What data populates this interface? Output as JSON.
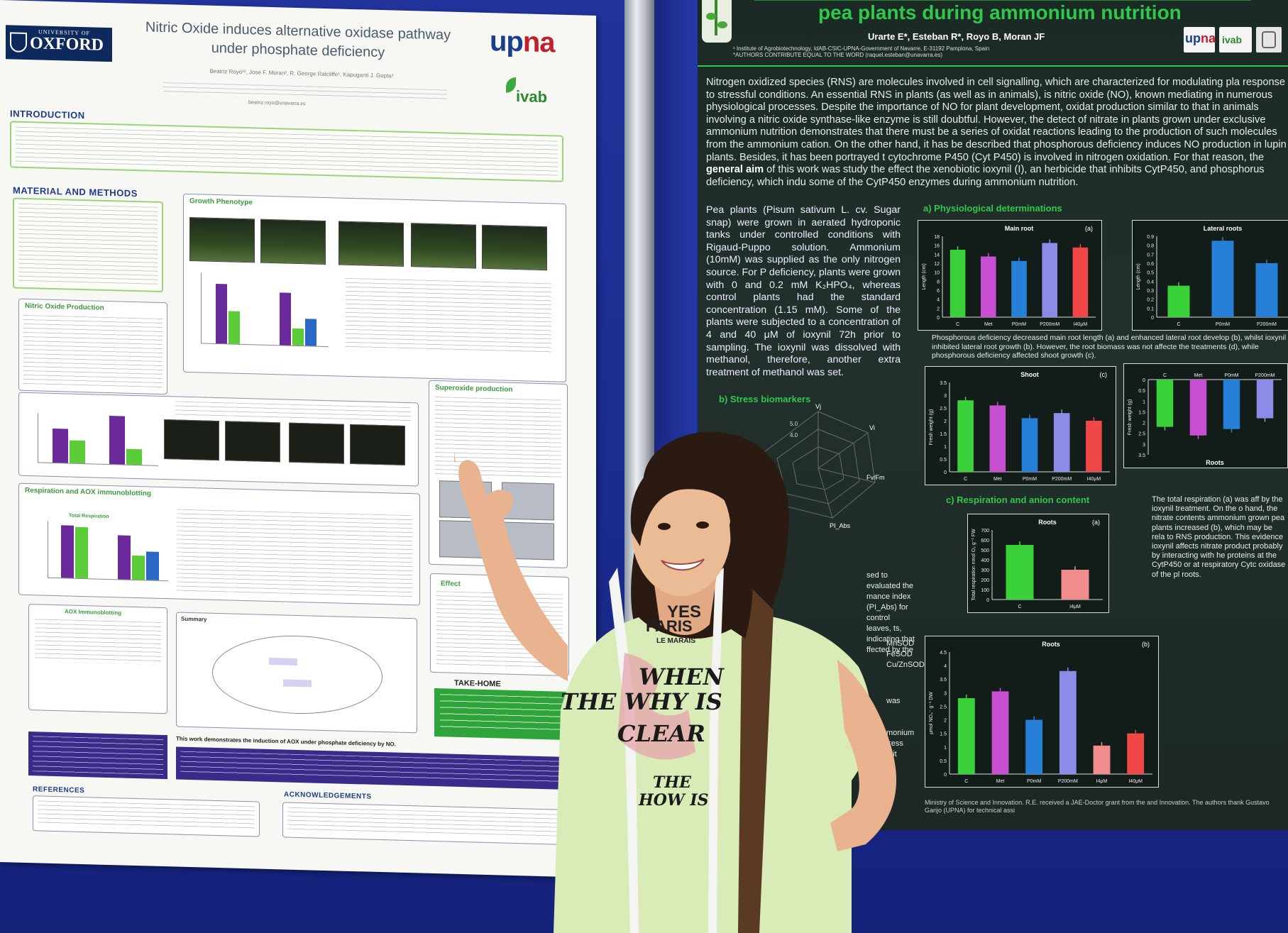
{
  "left_poster": {
    "institution_logo": "UNIVERSITY OF OXFORD",
    "institution_logo_small": "UNIVERSITY OF",
    "institution_logo_large": "OXFORD",
    "title_line1": "Nitric Oxide induces alternative oxidase pathway",
    "title_line2": "under phosphate deficiency",
    "authors": "Beatriz Royo¹², Jose F. Moran², R. George Ratcliffe¹, Kapuganti J. Gupta¹",
    "email": "beatriz.royo@unavarra.es",
    "logo_upna_blue": "up",
    "logo_upna_red": "na",
    "logo_ivab": "ivab",
    "sections": {
      "introduction": "INTRODUCTION",
      "material_methods": "MATERIAL AND METHODS",
      "growth_phenotype": "Growth Phenotype",
      "nitric_oxide": "Nitric Oxide Production",
      "superoxide": "Superoxide production",
      "respiration": "Respiration and AOX immunoblotting",
      "total_respiration": "Total Respiration",
      "aox_immunoblotting": "AOX Immunoblotting",
      "summary": "Summary",
      "take_home": "TAKE-HOME",
      "effect": "Effect",
      "references": "REFERENCES",
      "acknowledgements": "ACKNOWLEDGEMENTS"
    },
    "conclusion_line": "This work demonstrates the induction of AOX under phosphate deficiency by NO."
  },
  "right_poster": {
    "title": "pea plants during ammonium nutrition",
    "authors": "Urarte E*, Esteban R*, Royo B, Moran JF",
    "affiliation_line1": "¹ Institute of Agrobiotechnology, IdAB-CSIC-UPNA-Government of Navarre, E-31192 Pamplona, Spain",
    "affiliation_line2": "*AUTHORS CONTRIBUTE EQUAL TO THE WORD (raquel.esteban@unavarra.es)",
    "logo_upna_blue": "up",
    "logo_upna_red": "na",
    "logo_ivab": "ivab",
    "intro_part1": "Nitrogen oxidized species (RNS) are molecules involved in cell signalling, which are characterized for modulating pla response to stressful conditions. An essential RNS in plants (as well as in animals), is nitric oxide (NO), known mediating in numerous physiological processes. Despite the importance of NO for plant development, oxidat production similar to that in animals involving a nitric oxide synthase-like enzyme is still doubtful. However, the detect of nitrate in plants grown under exclusive ammonium nutrition demonstrates that there must be a series of oxidat reactions leading to the production of such molecules from the ammonium cation. On the other hand, it has be described that phosphorous deficiency induces NO production in lupin plants. Besides, it has been portrayed t cytochrome P450 (Cyt P450) is involved in nitrogen oxidation. For that reason, the ",
    "intro_bold": "general aim",
    "intro_part2": " of this work was study the effect the xenobiotic ioxynil (I), an herbicide that inhibits CytP450, and phosphorus deficiency, which indu some of the CytP450 enzymes during ammonium nutrition.",
    "methods": "Pea plants (Pisum sativum L. cv. Sugar snap) were grown in aerated hydroponic tanks under controlled conditions with Rigaud-Puppo solution. Ammonium (10mM) was supplied as the only nitrogen source. For P deficiency, plants were grown with 0 and 0.2 mM K₂HPO₄, whereas control plants had the standard concentration (1.15 mM). Some of the plants were subjected to a concentration of 4 and 40 μM of ioxynil 72h prior to sampling. The ioxynil was dissolved with methanol, therefore, another extra treatment of methanol was set.",
    "sec_physiological": "a) Physiological determinations",
    "sec_stress": "b) Stress biomarkers",
    "sec_respiration": "c) Respiration and anion content",
    "phys_caption": "Phosphorous deficiency decreased main root length (a) and enhanced lateral root develop (b), whilst ioxynil inhibited lateral root growth (b). However, the root biomass was not affecte the treatments (d), while phosphorous deficiency affected shoot growth (c).",
    "resp_caption": "The total respiration (a) was aff by the ioxynil treatment. On the o hand, the nitrate contents ammonium grown pea plants increased (b), which may be rela to RNS production. This evidence ioxynil affects nitrate product probably by interacting with he proteins at the CytP450 or at respiratory Cytc oxidase of the pl roots.",
    "stress_caption_fragment": "sed to evaluated the mance index (PI_Abs) for control leaves, ts, indicating that ffected by the",
    "radar_labels": [
      "Vj",
      "Vi",
      "Fv/Fm",
      "PI_Abs"
    ],
    "radar_ticks": [
      "5.0",
      "4.0"
    ],
    "side_fragments": [
      "MnSOD",
      "FeSOD",
      "Cu/ZnSOD",
      "was",
      "monium",
      "tress",
      "d it",
      "as"
    ],
    "acknowledgement_fragment": "Ministry of Science and Innovation. R.E. received a JAE-Doctor grant from the and Innovation. The authors thank Gustavo Garijo (UPNA) for technical assi"
  },
  "chart_data": [
    {
      "type": "bar",
      "title": "Main root",
      "panel": "(a)",
      "ylabel": "Length (cm)",
      "categories": [
        "C",
        "Met",
        "P0mM",
        "P200mM",
        "I40μM"
      ],
      "values": [
        15.0,
        13.5,
        12.5,
        16.5,
        15.5
      ],
      "colors": [
        "#3bd13b",
        "#c84fd2",
        "#2680d8",
        "#8c8ce8",
        "#f04848"
      ],
      "ylim": [
        0,
        18
      ],
      "yticks": [
        0,
        2,
        4,
        6,
        8,
        10,
        12,
        14,
        16,
        18
      ]
    },
    {
      "type": "bar",
      "title": "Lateral roots",
      "ylabel": "Length (cm)",
      "categories": [
        "C",
        "P0mM",
        "P200mM"
      ],
      "values": [
        0.35,
        0.85,
        0.6
      ],
      "colors": [
        "#3bd13b",
        "#2680d8",
        "#2680d8"
      ],
      "ylim": [
        0,
        0.9
      ],
      "yticks": [
        0,
        0.1,
        0.2,
        0.3,
        0.4,
        0.5,
        0.6,
        0.7,
        0.8,
        0.9
      ]
    },
    {
      "type": "bar",
      "title": "Shoot",
      "panel": "(c)",
      "ylabel": "Fresh weight (g)",
      "categories": [
        "C",
        "Met",
        "P0mM",
        "P200mM",
        "I40μM"
      ],
      "values": [
        2.8,
        2.6,
        2.1,
        2.3,
        2.0
      ],
      "colors": [
        "#3bd13b",
        "#c84fd2",
        "#2680d8",
        "#8c8ce8",
        "#f04848"
      ],
      "ylim": [
        0,
        3.5
      ],
      "yticks": [
        0,
        0.5,
        1.0,
        1.5,
        2.0,
        2.5,
        3.0,
        3.5
      ]
    },
    {
      "type": "bar",
      "title": "Roots",
      "ylabel": "Fresh weight (g)",
      "categories": [
        "C",
        "Met",
        "P0mM",
        "P200mM"
      ],
      "values": [
        2.2,
        2.6,
        2.3,
        1.8
      ],
      "colors": [
        "#3bd13b",
        "#c84fd2",
        "#2680d8",
        "#8c8ce8"
      ],
      "ylim": [
        0,
        3.5
      ],
      "yticks": [
        0,
        0.5,
        1.0,
        1.5,
        2.0,
        2.5,
        3.0,
        3.5
      ],
      "inverted": true
    },
    {
      "type": "bar",
      "title": "Roots",
      "panel": "(a)",
      "ylabel": "Total respiration nmol O₂ g⁻¹ FW",
      "categories": [
        "C",
        "I4μM"
      ],
      "values": [
        550,
        300
      ],
      "colors": [
        "#3bd13b",
        "#f08c8c"
      ],
      "ylim": [
        0,
        700
      ],
      "yticks": [
        0,
        100,
        200,
        300,
        400,
        500,
        600,
        700
      ]
    },
    {
      "type": "bar",
      "title": "Roots",
      "panel": "(b)",
      "ylabel": "μmol NO₃⁻ g⁻¹ DW",
      "categories": [
        "C",
        "Met",
        "P0mM",
        "P200mM",
        "I4μM",
        "I40μM"
      ],
      "values": [
        2.8,
        3.05,
        2.0,
        3.8,
        1.05,
        1.5
      ],
      "colors": [
        "#3bd13b",
        "#c84fd2",
        "#2680d8",
        "#8c8ce8",
        "#f08c8c",
        "#f04848"
      ],
      "ylim": [
        0,
        4.5
      ],
      "yticks": [
        0,
        0.5,
        1.0,
        1.5,
        2.0,
        2.5,
        3.0,
        3.5,
        4.0,
        4.5
      ]
    }
  ],
  "tshirt": {
    "line1": "YES",
    "line2": "PARIS",
    "line3": "LE MARAIS",
    "line4": "WHEN",
    "line5": "THE WHY IS",
    "line6": "CLEAR",
    "line7": "THE",
    "line8": "HOW IS"
  },
  "colors": {
    "board_blue": "#1f2f95",
    "right_poster_bg": "#1f2a26",
    "title_green": "#2fc84a",
    "left_poster_bg": "#f7f8f4",
    "tshirt": "#d9ecb8",
    "hair": "#2a1a12"
  }
}
